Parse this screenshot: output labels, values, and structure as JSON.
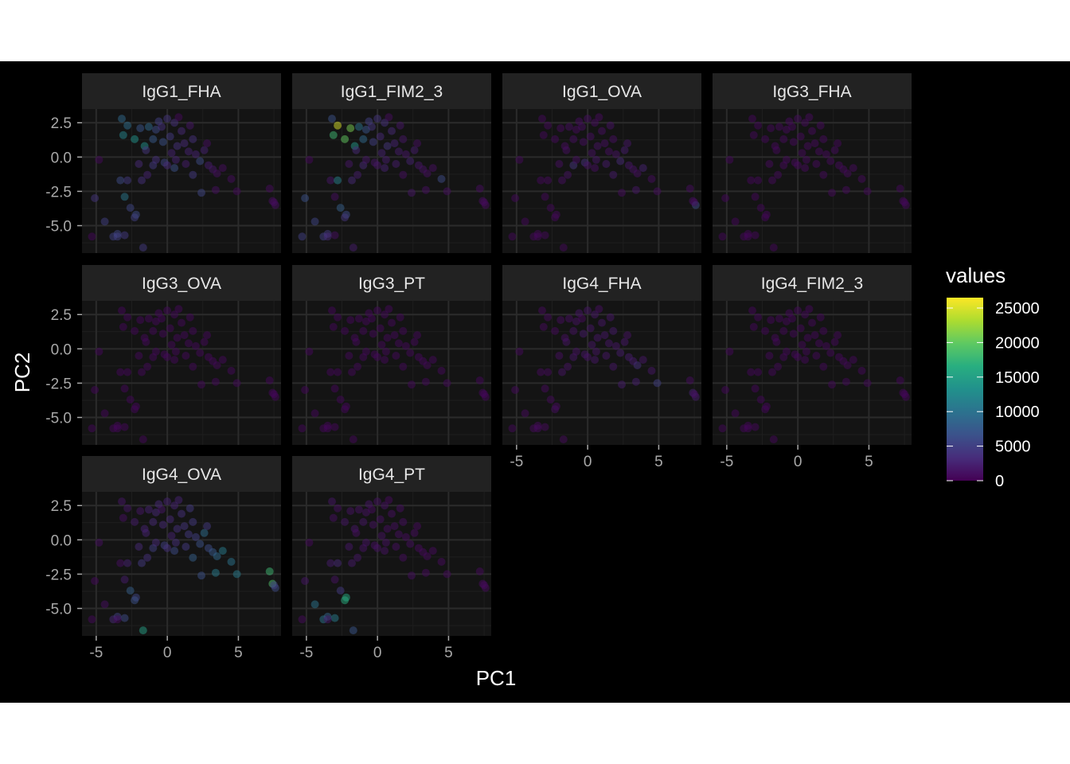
{
  "chart_data": {
    "type": "scatter",
    "xlabel": "PC1",
    "ylabel": "PC2",
    "xlim": [
      -6,
      8
    ],
    "ylim": [
      -7,
      3.5
    ],
    "x_ticks": [
      -5,
      0,
      5
    ],
    "y_ticks": [
      2.5,
      0.0,
      -2.5,
      -5.0
    ],
    "x_tick_labels": [
      "-5",
      "0",
      "5"
    ],
    "y_tick_labels": [
      "2.5",
      "0.0",
      "-2.5",
      "-5.0"
    ],
    "color_scale": {
      "name": "values",
      "palette": "viridis",
      "min": 0,
      "max": 26500,
      "ticks": [
        0,
        5000,
        10000,
        15000,
        20000,
        25000
      ],
      "tick_labels": [
        "0",
        "5000",
        "10000",
        "15000",
        "20000",
        "25000"
      ]
    },
    "theme": {
      "background": "#000000",
      "panel_background": "#141414",
      "strip_background": "#222222",
      "grid": true,
      "legend_position": "right"
    },
    "points": [
      {
        "x": -5.3,
        "y": -5.8
      },
      {
        "x": -5.1,
        "y": -3.0
      },
      {
        "x": -4.4,
        "y": -4.7
      },
      {
        "x": -3.8,
        "y": -5.8
      },
      {
        "x": -3.5,
        "y": -5.6
      },
      {
        "x": -3.3,
        "y": -1.7
      },
      {
        "x": -3.0,
        "y": -5.7
      },
      {
        "x": -3.5,
        "y": -5.8
      },
      {
        "x": -2.8,
        "y": -1.7
      },
      {
        "x": -3.2,
        "y": 2.8
      },
      {
        "x": -3.0,
        "y": -2.9
      },
      {
        "x": -2.6,
        "y": -3.7
      },
      {
        "x": -2.2,
        "y": -4.2
      },
      {
        "x": -1.7,
        "y": -6.6
      },
      {
        "x": -2.3,
        "y": -4.4
      },
      {
        "x": -3.1,
        "y": 1.6
      },
      {
        "x": -2.8,
        "y": 2.3
      },
      {
        "x": -2.3,
        "y": 1.3
      },
      {
        "x": -1.9,
        "y": 2.1
      },
      {
        "x": -1.6,
        "y": 0.8
      },
      {
        "x": -1.3,
        "y": 2.2
      },
      {
        "x": -1.0,
        "y": 1.3
      },
      {
        "x": -0.8,
        "y": 2.0
      },
      {
        "x": -0.6,
        "y": 2.6
      },
      {
        "x": -0.3,
        "y": 1.1
      },
      {
        "x": 0.0,
        "y": 2.8
      },
      {
        "x": 0.2,
        "y": 1.5
      },
      {
        "x": 0.5,
        "y": 2.5
      },
      {
        "x": 0.7,
        "y": 0.8
      },
      {
        "x": 1.0,
        "y": 1.9
      },
      {
        "x": 1.2,
        "y": 1.0
      },
      {
        "x": 1.5,
        "y": 0.4
      },
      {
        "x": 1.8,
        "y": 1.3
      },
      {
        "x": 2.0,
        "y": 0.2
      },
      {
        "x": 2.3,
        "y": -0.3
      },
      {
        "x": 2.6,
        "y": 0.5
      },
      {
        "x": 2.9,
        "y": -0.6
      },
      {
        "x": 3.2,
        "y": -0.9
      },
      {
        "x": 3.5,
        "y": -1.2
      },
      {
        "x": 3.9,
        "y": -0.8
      },
      {
        "x": 4.5,
        "y": -1.6
      },
      {
        "x": 4.9,
        "y": -2.5
      },
      {
        "x": 2.4,
        "y": -2.6
      },
      {
        "x": 1.8,
        "y": -1.3
      },
      {
        "x": 0.5,
        "y": -0.8
      },
      {
        "x": -0.2,
        "y": -0.4
      },
      {
        "x": -1.0,
        "y": -0.6
      },
      {
        "x": -1.8,
        "y": -1.7
      },
      {
        "x": -2.0,
        "y": -0.5
      },
      {
        "x": -1.4,
        "y": -1.3
      },
      {
        "x": -0.8,
        "y": -0.2
      },
      {
        "x": 0.0,
        "y": -0.6
      },
      {
        "x": 0.6,
        "y": -0.2
      },
      {
        "x": 1.3,
        "y": -0.5
      },
      {
        "x": 3.4,
        "y": -2.4
      },
      {
        "x": 7.2,
        "y": -2.3
      },
      {
        "x": 7.4,
        "y": -3.2
      },
      {
        "x": 7.6,
        "y": -3.5
      },
      {
        "x": 7.5,
        "y": -3.3
      },
      {
        "x": -4.8,
        "y": -0.2
      },
      {
        "x": -0.4,
        "y": 2.2
      },
      {
        "x": 0.3,
        "y": 0.3
      },
      {
        "x": 1.6,
        "y": 2.3
      },
      {
        "x": -1.5,
        "y": 0.5
      },
      {
        "x": 2.8,
        "y": 1.0
      },
      {
        "x": 0.8,
        "y": 2.9
      }
    ],
    "panels": [
      {
        "name": "IgG1_FHA",
        "values": [
          400,
          4000,
          5000,
          5200,
          5500,
          6000,
          4500,
          5000,
          4500,
          9000,
          10500,
          5500,
          6000,
          4500,
          5000,
          12000,
          9500,
          13500,
          7000,
          13000,
          9000,
          7500,
          6000,
          5000,
          6500,
          4000,
          4500,
          3500,
          3500,
          3000,
          3000,
          2500,
          3500,
          2500,
          6000,
          2500,
          2000,
          1500,
          1000,
          800,
          800,
          500,
          5500,
          4500,
          6500,
          5500,
          4500,
          3500,
          3000,
          2500,
          3500,
          3000,
          2500,
          2000,
          1000,
          600,
          800,
          900,
          800,
          500,
          3500,
          2500,
          1500,
          4000,
          1000,
          500
        ]
      },
      {
        "name": "IgG1_FIM2_3",
        "values": [
          5000,
          6500,
          5500,
          5000,
          4500,
          1500,
          1000,
          3000,
          11500,
          6500,
          1000,
          8000,
          6000,
          2000,
          4000,
          18000,
          25000,
          20000,
          21000,
          14000,
          10000,
          9000,
          7000,
          5000,
          5000,
          4000,
          3000,
          3500,
          4000,
          3000,
          2500,
          2000,
          1500,
          1500,
          2500,
          2000,
          1500,
          1200,
          1000,
          1000,
          6000,
          1000,
          1500,
          1000,
          2500,
          1500,
          3000,
          3000,
          1500,
          2000,
          1500,
          1500,
          2000,
          2000,
          1000,
          800,
          800,
          700,
          600,
          400,
          4000,
          2500,
          1500,
          3000,
          1000,
          800
        ]
      },
      {
        "name": "IgG1_OVA",
        "values": [
          500,
          500,
          500,
          500,
          500,
          500,
          500,
          500,
          600,
          500,
          500,
          500,
          500,
          500,
          500,
          500,
          600,
          700,
          600,
          800,
          900,
          900,
          700,
          800,
          1000,
          900,
          1000,
          800,
          1200,
          1000,
          900,
          1000,
          1000,
          1200,
          3000,
          2000,
          1500,
          1200,
          1000,
          2500,
          800,
          800,
          800,
          1800,
          1000,
          3500,
          4000,
          1000,
          900,
          1200,
          1000,
          1200,
          1500,
          1800,
          1500,
          800,
          900,
          6000,
          800,
          500,
          900,
          1200,
          1300,
          1000,
          1500,
          700
        ]
      },
      {
        "name": "IgG3_FHA",
        "values": [
          400,
          400,
          400,
          400,
          400,
          400,
          400,
          400,
          500,
          400,
          400,
          400,
          400,
          400,
          400,
          500,
          400,
          500,
          500,
          500,
          600,
          600,
          600,
          700,
          700,
          800,
          700,
          700,
          700,
          600,
          600,
          600,
          600,
          600,
          700,
          800,
          700,
          600,
          600,
          600,
          600,
          500,
          600,
          600,
          700,
          700,
          700,
          600,
          600,
          600,
          600,
          600,
          600,
          700,
          600,
          500,
          500,
          500,
          500,
          400,
          500,
          700,
          600,
          500,
          500,
          600
        ]
      },
      {
        "name": "IgG3_OVA",
        "values": [
          400,
          400,
          400,
          400,
          400,
          400,
          400,
          400,
          400,
          400,
          400,
          400,
          400,
          400,
          400,
          400,
          400,
          400,
          400,
          500,
          500,
          500,
          500,
          500,
          500,
          600,
          500,
          500,
          500,
          500,
          500,
          500,
          500,
          500,
          500,
          500,
          500,
          500,
          500,
          500,
          500,
          500,
          500,
          500,
          500,
          500,
          500,
          500,
          500,
          500,
          500,
          500,
          500,
          500,
          500,
          400,
          400,
          400,
          400,
          400,
          400,
          500,
          500,
          500,
          500,
          500
        ]
      },
      {
        "name": "IgG3_PT",
        "values": [
          400,
          400,
          400,
          400,
          400,
          400,
          400,
          400,
          400,
          400,
          400,
          400,
          400,
          400,
          400,
          400,
          400,
          400,
          400,
          500,
          500,
          500,
          500,
          500,
          500,
          600,
          500,
          500,
          500,
          500,
          500,
          500,
          500,
          500,
          500,
          500,
          500,
          500,
          500,
          500,
          500,
          500,
          500,
          500,
          500,
          500,
          500,
          500,
          500,
          500,
          500,
          500,
          500,
          500,
          500,
          400,
          400,
          400,
          400,
          400,
          400,
          500,
          500,
          500,
          500,
          500
        ]
      },
      {
        "name": "IgG4_FHA",
        "values": [
          500,
          600,
          600,
          600,
          600,
          600,
          600,
          600,
          600,
          600,
          600,
          600,
          600,
          600,
          1000,
          600,
          600,
          600,
          800,
          900,
          1000,
          1200,
          1200,
          1500,
          1800,
          1500,
          1500,
          1500,
          1500,
          1500,
          1500,
          1500,
          1800,
          1500,
          2000,
          1600,
          2000,
          1800,
          3500,
          1500,
          1500,
          5000,
          2000,
          1500,
          1500,
          1500,
          1500,
          1400,
          1000,
          1200,
          1200,
          1300,
          1400,
          1500,
          2200,
          800,
          2500,
          2000,
          1000,
          500,
          700,
          1500,
          1500,
          1400,
          1200,
          900
        ]
      },
      {
        "name": "IgG4_FIM2_3",
        "values": [
          400,
          400,
          400,
          400,
          400,
          400,
          400,
          400,
          400,
          400,
          400,
          400,
          400,
          400,
          400,
          400,
          400,
          400,
          400,
          500,
          500,
          500,
          500,
          500,
          500,
          600,
          500,
          500,
          500,
          500,
          500,
          500,
          500,
          500,
          500,
          500,
          500,
          500,
          500,
          500,
          500,
          500,
          500,
          500,
          500,
          500,
          500,
          500,
          500,
          500,
          500,
          500,
          500,
          500,
          500,
          400,
          400,
          400,
          400,
          400,
          400,
          500,
          500,
          500,
          500,
          500
        ]
      },
      {
        "name": "IgG4_OVA",
        "values": [
          500,
          600,
          1000,
          3000,
          5000,
          1000,
          6000,
          600,
          2500,
          1500,
          2000,
          8000,
          5500,
          15000,
          6500,
          1000,
          1500,
          2000,
          1500,
          2500,
          2500,
          3000,
          3000,
          3000,
          3000,
          2500,
          3000,
          2500,
          3500,
          3500,
          4000,
          4500,
          4500,
          5000,
          6500,
          9500,
          6000,
          7500,
          9000,
          11000,
          10000,
          11000,
          6500,
          8000,
          6000,
          5000,
          5000,
          4500,
          3000,
          3500,
          3000,
          3500,
          3500,
          4500,
          11000,
          18000,
          19000,
          6000,
          5000,
          1000,
          1500,
          2500,
          4500,
          2500,
          4500,
          2500
        ]
      },
      {
        "name": "IgG4_PT",
        "values": [
          600,
          1500,
          10000,
          10000,
          8500,
          2000,
          11000,
          1500,
          3000,
          1500,
          1200,
          4500,
          16000,
          7000,
          16500,
          1000,
          900,
          1500,
          1200,
          1500,
          1200,
          1500,
          1200,
          1500,
          1200,
          1200,
          1100,
          1100,
          1000,
          1000,
          1000,
          900,
          900,
          800,
          900,
          800,
          700,
          700,
          700,
          700,
          700,
          600,
          900,
          800,
          1200,
          1100,
          1300,
          1800,
          1600,
          1500,
          1300,
          1200,
          1100,
          1000,
          700,
          600,
          600,
          600,
          600,
          500,
          800,
          1200,
          900,
          900,
          700,
          700
        ]
      }
    ]
  }
}
